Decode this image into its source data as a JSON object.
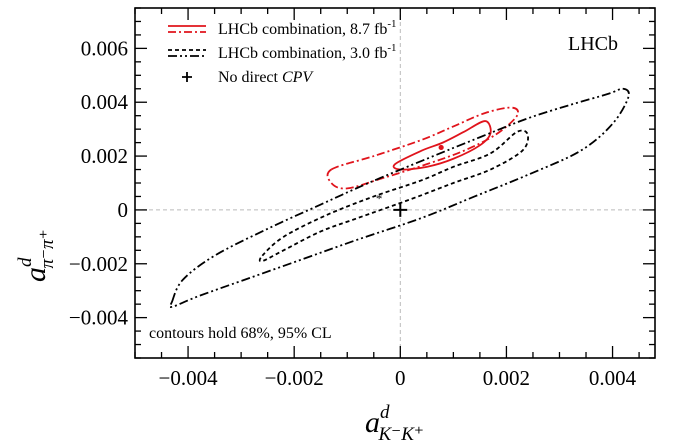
{
  "chart_data": {
    "type": "scatter",
    "subtype": "confidence-contours",
    "experiment_label": "LHCb",
    "annotation": "contours hold 68%, 95% CL",
    "xlabel": {
      "main": "a",
      "sup": "d",
      "sub": "K⁻K⁺"
    },
    "ylabel": {
      "main": "a",
      "sup": "d",
      "sub": "π⁻π⁺"
    },
    "xlim": [
      -0.005,
      0.0048
    ],
    "ylim": [
      -0.0055,
      0.0075
    ],
    "xticks": [
      -0.004,
      -0.002,
      0,
      0.002,
      0.004
    ],
    "xtick_labels": [
      "−0.004",
      "−0.002",
      "0",
      "0.002",
      "0.004"
    ],
    "yticks": [
      -0.004,
      -0.002,
      0,
      0.002,
      0.004,
      0.006
    ],
    "ytick_labels": [
      "−0.004",
      "−0.002",
      "0",
      "0.002",
      "0.004",
      "0.006"
    ],
    "zero_reference_lines": true,
    "legend_position": "top-left",
    "series": [
      {
        "name": "LHCb combination, 8.7 fb",
        "name_sup": "-1",
        "color": "#e0141c",
        "central_value": [
          0.00077,
          0.00232
        ],
        "contours": [
          {
            "cl": "68%",
            "style": "solid",
            "points": [
              [
                -0.0001,
                0.0017
              ],
              [
                0.0004,
                0.0022
              ],
              [
                0.0008,
                0.0025
              ],
              [
                0.0012,
                0.0029
              ],
              [
                0.0016,
                0.0033
              ],
              [
                0.0017,
                0.00285
              ],
              [
                0.0015,
                0.0024
              ],
              [
                0.001,
                0.0019
              ],
              [
                0.0005,
                0.0016
              ],
              [
                0.0,
                0.0015
              ],
              [
                -0.0001,
                0.0017
              ]
            ]
          },
          {
            "cl": "95%",
            "style": "dashdot",
            "points": [
              [
                -0.0013,
                0.0015
              ],
              [
                -0.0005,
                0.002
              ],
              [
                0.0004,
                0.0026
              ],
              [
                0.001,
                0.0031
              ],
              [
                0.0016,
                0.0036
              ],
              [
                0.0021,
                0.0038
              ],
              [
                0.0022,
                0.0035
              ],
              [
                0.0018,
                0.0028
              ],
              [
                0.0012,
                0.0022
              ],
              [
                0.0005,
                0.0017
              ],
              [
                -0.0003,
                0.0012
              ],
              [
                -0.001,
                0.0008
              ],
              [
                -0.0013,
                0.001
              ],
              [
                -0.0013,
                0.0015
              ]
            ]
          }
        ]
      },
      {
        "name": "LHCb combination, 3.0 fb",
        "name_sup": "-1",
        "color": "#000000",
        "central_value": [
          -0.0004,
          0.0004
        ],
        "contours": [
          {
            "cl": "68%",
            "style": "dashed",
            "points": [
              [
                -0.0026,
                -0.0017
              ],
              [
                -0.0022,
                -0.001
              ],
              [
                -0.0014,
                -0.0002
              ],
              [
                -0.0005,
                0.0005
              ],
              [
                0.0004,
                0.0011
              ],
              [
                0.001,
                0.0016
              ],
              [
                0.0017,
                0.0021
              ],
              [
                0.0022,
                0.0029
              ],
              [
                0.0024,
                0.0028
              ],
              [
                0.0023,
                0.0022
              ],
              [
                0.0017,
                0.0015
              ],
              [
                0.001,
                0.001
              ],
              [
                0.0002,
                0.0004
              ],
              [
                -0.0008,
                -0.0003
              ],
              [
                -0.0015,
                -0.0008
              ],
              [
                -0.0022,
                -0.0015
              ],
              [
                -0.0026,
                -0.0019
              ],
              [
                -0.0026,
                -0.0017
              ]
            ]
          },
          {
            "cl": "95%",
            "style": "dashdotdot",
            "points": [
              [
                -0.0043,
                -0.0034
              ],
              [
                -0.0041,
                -0.0026
              ],
              [
                -0.0035,
                -0.0017
              ],
              [
                -0.0025,
                -0.0007
              ],
              [
                -0.0015,
                0.0002
              ],
              [
                -0.0006,
                0.001
              ],
              [
                0.0005,
                0.0019
              ],
              [
                0.0015,
                0.0027
              ],
              [
                0.0024,
                0.0034
              ],
              [
                0.0032,
                0.0039
              ],
              [
                0.0039,
                0.0043
              ],
              [
                0.0042,
                0.0045
              ],
              [
                0.0043,
                0.0042
              ],
              [
                0.004,
                0.0032
              ],
              [
                0.0034,
                0.0022
              ],
              [
                0.0024,
                0.0013
              ],
              [
                0.0014,
                0.0005
              ],
              [
                0.0004,
                -0.0003
              ],
              [
                -0.0008,
                -0.0011
              ],
              [
                -0.0018,
                -0.0018
              ],
              [
                -0.0028,
                -0.0025
              ],
              [
                -0.0038,
                -0.0032
              ],
              [
                -0.0043,
                -0.0036
              ],
              [
                -0.0043,
                -0.0034
              ]
            ]
          }
        ]
      },
      {
        "name": "No direct ",
        "name_italic_suffix": "CPV",
        "color": "#000000",
        "marker": "plus",
        "points": [
          [
            0,
            0
          ]
        ]
      }
    ]
  }
}
